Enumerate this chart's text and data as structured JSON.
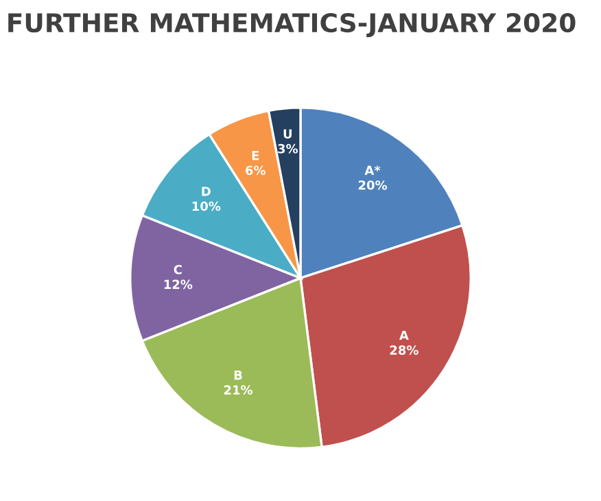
{
  "chart_data": {
    "type": "pie",
    "title": "FURTHER MATHEMATICS-JANUARY 2020",
    "categories": [
      "A*",
      "A",
      "B",
      "C",
      "D",
      "E",
      "U"
    ],
    "values": [
      20,
      28,
      21,
      12,
      10,
      6,
      3
    ],
    "value_labels": [
      "20%",
      "28%",
      "21%",
      "12%",
      "10%",
      "6%",
      "3%"
    ],
    "colors": [
      "#4f81bd",
      "#c0504d",
      "#9bbb59",
      "#8064a2",
      "#4bacc6",
      "#f79646",
      "#243f60"
    ],
    "legend": false
  }
}
